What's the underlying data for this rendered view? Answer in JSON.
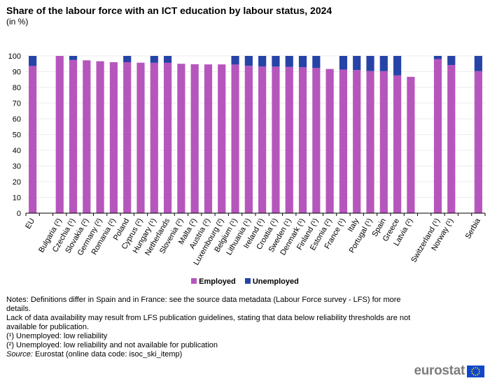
{
  "title": "Share of the labour force with an ICT education by labour status, 2024",
  "subtitle": "(in %)",
  "colors": {
    "employed": "#b656bd",
    "unemployed": "#2644a7",
    "grid": "#d9d9d9",
    "axis": "#000000",
    "logo": "#7d7d7d",
    "flag": "#0e47cb",
    "flag_stars": "#ffdd00"
  },
  "legend": {
    "employed": "Employed",
    "unemployed": "Unemployed"
  },
  "notes": {
    "line1": "Notes: Definitions differ in Spain and in France: see the source data metadata (Labour Force survey - LFS) for more details.",
    "line2": "Lack of data availability may result from LFS publication guidelines, stating that data below reliability thresholds are not available for publication.",
    "line3": "(¹) Unemployed: low reliability",
    "line4": "(²) Unemployed: low reliability and not available for publication",
    "source_label": "Source:",
    "source_text": " Eurostat (online data code: isoc_ski_itemp)"
  },
  "logo_text": "eurostat",
  "chart_data": {
    "type": "bar",
    "stacked": true,
    "ylim": [
      0,
      100
    ],
    "yticks": [
      0,
      10,
      20,
      30,
      40,
      50,
      60,
      70,
      80,
      90,
      100
    ],
    "grid": true,
    "legend_position": "bottom",
    "categories": [
      "EU",
      "",
      "Bulgaria (²)",
      "Czechia (¹)",
      "Slovakia (²)",
      "Germany (²)",
      "Romania (²)",
      "Poland",
      "Cyprus (²)",
      "Hungary (¹)",
      "Netherlands",
      "Slovenia (²)",
      "Malta (²)",
      "Austria (²)",
      "Luxembourg (²)",
      "Belgium (¹)",
      "Lithuania (¹)",
      "Ireland (¹)",
      "Croatia (¹)",
      "Sweden (¹)",
      "Denmark (¹)",
      "Finland (¹)",
      "Estonia (²)",
      "France (¹)",
      "Italy",
      "Portugal (¹)",
      "Spain",
      "Greece",
      "Latvia (²)",
      "",
      "Switzerland (¹)",
      "Norway (¹)",
      "",
      "Serbia"
    ],
    "series": [
      {
        "name": "Employed",
        "values": [
          93.6,
          null,
          100,
          97.4,
          97.2,
          96.6,
          96.0,
          96.0,
          95.7,
          95.6,
          95.6,
          95.0,
          94.7,
          94.6,
          94.6,
          94.5,
          93.7,
          93.3,
          93.2,
          93.1,
          92.8,
          92.3,
          91.7,
          91.3,
          91.0,
          90.4,
          90.3,
          87.6,
          86.7,
          null,
          98.0,
          94.2,
          null,
          90.3
        ]
      },
      {
        "name": "Unemployed",
        "values": [
          6.4,
          null,
          0,
          2.6,
          null,
          null,
          null,
          4.0,
          null,
          4.4,
          4.4,
          null,
          null,
          null,
          null,
          5.5,
          6.3,
          6.7,
          6.8,
          6.9,
          7.2,
          7.7,
          null,
          8.7,
          9.0,
          9.6,
          9.7,
          12.4,
          null,
          null,
          2.0,
          5.8,
          null,
          9.7
        ]
      }
    ]
  }
}
